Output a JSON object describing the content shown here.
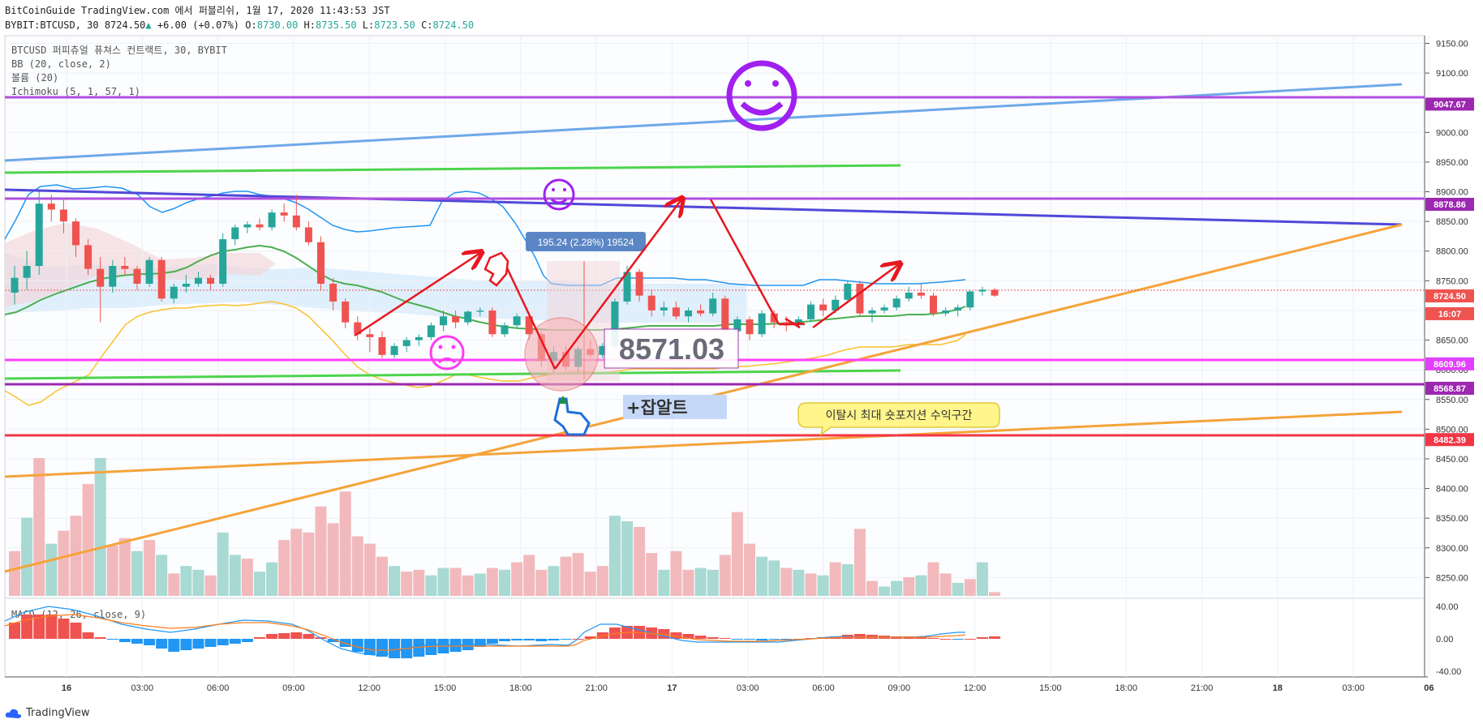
{
  "header": {
    "line1": "BitCoinGuide TradingView.com 에서 퍼블리쉬, 1월 17, 2020 11:43:53 JST",
    "symbol": "BYBIT:BTCUSD, 30",
    "last": "8724.50",
    "arrow": "▲",
    "change": "+6.00 (+0.07%)",
    "o_label": "O:",
    "o_val": "8730.00",
    "h_label": "H:",
    "h_val": "8735.50",
    "l_label": "L:",
    "l_val": "8723.50",
    "c_label": "C:",
    "c_val": "8724.50"
  },
  "legend": [
    "BTCUSD 퍼피츄얼 퓨쳐스 컨트랙트, 30, BYBIT",
    "BB (20, close, 2)",
    "볼륨 (20)",
    "Ichimoku (5, 1, 57, 1)"
  ],
  "macd_label": "MACD (12, 26, close, 9)",
  "annotations": {
    "measure": "195.24 (2.28%) 19524",
    "big_price": "8571.03",
    "catch_alt": "+잡알트",
    "callout": "이탈시 최대 숏포지션 수익구간"
  },
  "price_tags": [
    {
      "value": "9047.67",
      "color": "#9c27b0"
    },
    {
      "value": "8878.86",
      "color": "#9c27b0"
    },
    {
      "value": "8724.50",
      "color": "#ef5350"
    },
    {
      "value": "16:07",
      "color": "#ef5350"
    },
    {
      "value": "8609.96",
      "color": "#e040fb"
    },
    {
      "value": "8568.87",
      "color": "#9c27b0"
    },
    {
      "value": "8482.39",
      "color": "#f23645"
    }
  ],
  "footer": {
    "brand": "TradingView"
  },
  "colors": {
    "up": "#26a69a",
    "down": "#ef5350"
  },
  "chart_data": {
    "type": "candlestick",
    "interval": "30",
    "y_ticks": [
      "9150.00",
      "9100.00",
      "9050.00",
      "9000.00",
      "8950.00",
      "8900.00",
      "8850.00",
      "8800.00",
      "8750.00",
      "8700.00",
      "8650.00",
      "8600.00",
      "8550.00",
      "8500.00",
      "8450.00",
      "8400.00",
      "8350.00",
      "8300.00",
      "8250.00"
    ],
    "ylim": [
      8215,
      9163
    ],
    "macd_ticks": [
      "40.00",
      "0.00",
      "-40.00"
    ],
    "x_ticks": [
      "16",
      "03:00",
      "06:00",
      "09:00",
      "12:00",
      "15:00",
      "18:00",
      "21:00",
      "17",
      "03:00",
      "06:00",
      "09:00",
      "12:00",
      "15:00",
      "18:00",
      "21:00",
      "18",
      "03:00",
      "06"
    ],
    "candles": [
      {
        "o": 8730,
        "h": 8775,
        "l": 8710,
        "c": 8755
      },
      {
        "o": 8755,
        "h": 8800,
        "l": 8735,
        "c": 8775
      },
      {
        "o": 8775,
        "h": 8900,
        "l": 8760,
        "c": 8880
      },
      {
        "o": 8880,
        "h": 8895,
        "l": 8850,
        "c": 8870
      },
      {
        "o": 8870,
        "h": 8890,
        "l": 8830,
        "c": 8850
      },
      {
        "o": 8850,
        "h": 8855,
        "l": 8790,
        "c": 8810
      },
      {
        "o": 8810,
        "h": 8820,
        "l": 8760,
        "c": 8770
      },
      {
        "o": 8770,
        "h": 8790,
        "l": 8680,
        "c": 8740
      },
      {
        "o": 8740,
        "h": 8785,
        "l": 8730,
        "c": 8775
      },
      {
        "o": 8775,
        "h": 8790,
        "l": 8760,
        "c": 8770
      },
      {
        "o": 8770,
        "h": 8775,
        "l": 8735,
        "c": 8745
      },
      {
        "o": 8745,
        "h": 8790,
        "l": 8740,
        "c": 8785
      },
      {
        "o": 8785,
        "h": 8790,
        "l": 8715,
        "c": 8720
      },
      {
        "o": 8720,
        "h": 8745,
        "l": 8712,
        "c": 8740
      },
      {
        "o": 8740,
        "h": 8760,
        "l": 8730,
        "c": 8745
      },
      {
        "o": 8745,
        "h": 8765,
        "l": 8740,
        "c": 8755
      },
      {
        "o": 8755,
        "h": 8760,
        "l": 8735,
        "c": 8745
      },
      {
        "o": 8745,
        "h": 8830,
        "l": 8740,
        "c": 8820
      },
      {
        "o": 8820,
        "h": 8845,
        "l": 8810,
        "c": 8840
      },
      {
        "o": 8840,
        "h": 8850,
        "l": 8830,
        "c": 8845
      },
      {
        "o": 8845,
        "h": 8855,
        "l": 8835,
        "c": 8840
      },
      {
        "o": 8840,
        "h": 8870,
        "l": 8835,
        "c": 8865
      },
      {
        "o": 8865,
        "h": 8880,
        "l": 8850,
        "c": 8860
      },
      {
        "o": 8860,
        "h": 8895,
        "l": 8835,
        "c": 8840
      },
      {
        "o": 8840,
        "h": 8850,
        "l": 8810,
        "c": 8815
      },
      {
        "o": 8815,
        "h": 8825,
        "l": 8735,
        "c": 8745
      },
      {
        "o": 8745,
        "h": 8755,
        "l": 8700,
        "c": 8715
      },
      {
        "o": 8715,
        "h": 8720,
        "l": 8670,
        "c": 8680
      },
      {
        "o": 8680,
        "h": 8690,
        "l": 8650,
        "c": 8660
      },
      {
        "o": 8660,
        "h": 8670,
        "l": 8630,
        "c": 8655
      },
      {
        "o": 8655,
        "h": 8665,
        "l": 8620,
        "c": 8625
      },
      {
        "o": 8625,
        "h": 8645,
        "l": 8620,
        "c": 8640
      },
      {
        "o": 8640,
        "h": 8655,
        "l": 8630,
        "c": 8650
      },
      {
        "o": 8650,
        "h": 8660,
        "l": 8640,
        "c": 8655
      },
      {
        "o": 8655,
        "h": 8680,
        "l": 8650,
        "c": 8675
      },
      {
        "o": 8675,
        "h": 8700,
        "l": 8665,
        "c": 8690
      },
      {
        "o": 8690,
        "h": 8700,
        "l": 8670,
        "c": 8680
      },
      {
        "o": 8680,
        "h": 8700,
        "l": 8675,
        "c": 8698
      },
      {
        "o": 8698,
        "h": 8705,
        "l": 8690,
        "c": 8700
      },
      {
        "o": 8700,
        "h": 8705,
        "l": 8655,
        "c": 8660
      },
      {
        "o": 8660,
        "h": 8680,
        "l": 8655,
        "c": 8675
      },
      {
        "o": 8675,
        "h": 8695,
        "l": 8670,
        "c": 8690
      },
      {
        "o": 8690,
        "h": 8695,
        "l": 8650,
        "c": 8660
      },
      {
        "o": 8660,
        "h": 8665,
        "l": 8605,
        "c": 8615
      },
      {
        "o": 8615,
        "h": 8640,
        "l": 8595,
        "c": 8630
      },
      {
        "o": 8630,
        "h": 8640,
        "l": 8600,
        "c": 8605
      },
      {
        "o": 8605,
        "h": 8640,
        "l": 8595,
        "c": 8635
      },
      {
        "o": 8635,
        "h": 8650,
        "l": 8620,
        "c": 8625
      },
      {
        "o": 8625,
        "h": 8645,
        "l": 8620,
        "c": 8640
      },
      {
        "o": 8640,
        "h": 8720,
        "l": 8635,
        "c": 8715
      },
      {
        "o": 8715,
        "h": 8775,
        "l": 8710,
        "c": 8765
      },
      {
        "o": 8765,
        "h": 8770,
        "l": 8715,
        "c": 8725
      },
      {
        "o": 8725,
        "h": 8735,
        "l": 8690,
        "c": 8700
      },
      {
        "o": 8700,
        "h": 8715,
        "l": 8690,
        "c": 8705
      },
      {
        "o": 8705,
        "h": 8715,
        "l": 8685,
        "c": 8690
      },
      {
        "o": 8690,
        "h": 8705,
        "l": 8680,
        "c": 8700
      },
      {
        "o": 8700,
        "h": 8710,
        "l": 8690,
        "c": 8695
      },
      {
        "o": 8695,
        "h": 8730,
        "l": 8690,
        "c": 8720
      },
      {
        "o": 8720,
        "h": 8725,
        "l": 8660,
        "c": 8665
      },
      {
        "o": 8665,
        "h": 8690,
        "l": 8660,
        "c": 8685
      },
      {
        "o": 8685,
        "h": 8690,
        "l": 8650,
        "c": 8660
      },
      {
        "o": 8660,
        "h": 8700,
        "l": 8655,
        "c": 8695
      },
      {
        "o": 8695,
        "h": 8700,
        "l": 8670,
        "c": 8680
      },
      {
        "o": 8680,
        "h": 8690,
        "l": 8665,
        "c": 8675
      },
      {
        "o": 8675,
        "h": 8690,
        "l": 8670,
        "c": 8685
      },
      {
        "o": 8685,
        "h": 8715,
        "l": 8680,
        "c": 8710
      },
      {
        "o": 8710,
        "h": 8720,
        "l": 8690,
        "c": 8700
      },
      {
        "o": 8700,
        "h": 8725,
        "l": 8695,
        "c": 8718
      },
      {
        "o": 8718,
        "h": 8750,
        "l": 8712,
        "c": 8745
      },
      {
        "o": 8745,
        "h": 8750,
        "l": 8690,
        "c": 8695
      },
      {
        "o": 8695,
        "h": 8705,
        "l": 8680,
        "c": 8700
      },
      {
        "o": 8700,
        "h": 8710,
        "l": 8695,
        "c": 8705
      },
      {
        "o": 8705,
        "h": 8725,
        "l": 8700,
        "c": 8720
      },
      {
        "o": 8720,
        "h": 8740,
        "l": 8715,
        "c": 8730
      },
      {
        "o": 8730,
        "h": 8745,
        "l": 8720,
        "c": 8725
      },
      {
        "o": 8725,
        "h": 8730,
        "l": 8690,
        "c": 8695
      },
      {
        "o": 8695,
        "h": 8705,
        "l": 8690,
        "c": 8700
      },
      {
        "o": 8700,
        "h": 8710,
        "l": 8690,
        "c": 8705
      },
      {
        "o": 8705,
        "h": 8735,
        "l": 8700,
        "c": 8732
      },
      {
        "o": 8732,
        "h": 8740,
        "l": 8725,
        "c": 8735
      },
      {
        "o": 8735,
        "h": 8738,
        "l": 8723,
        "c": 8725
      }
    ],
    "volumes": [
      {
        "v": 120,
        "up": false
      },
      {
        "v": 210,
        "up": true
      },
      {
        "v": 370,
        "up": false
      },
      {
        "v": 140,
        "up": true
      },
      {
        "v": 175,
        "up": false
      },
      {
        "v": 215,
        "up": false
      },
      {
        "v": 300,
        "up": false
      },
      {
        "v": 370,
        "up": true
      },
      {
        "v": 135,
        "up": false
      },
      {
        "v": 155,
        "up": false
      },
      {
        "v": 120,
        "up": true
      },
      {
        "v": 150,
        "up": false
      },
      {
        "v": 110,
        "up": true
      },
      {
        "v": 60,
        "up": false
      },
      {
        "v": 80,
        "up": true
      },
      {
        "v": 70,
        "up": true
      },
      {
        "v": 55,
        "up": false
      },
      {
        "v": 170,
        "up": true
      },
      {
        "v": 110,
        "up": true
      },
      {
        "v": 100,
        "up": false
      },
      {
        "v": 65,
        "up": true
      },
      {
        "v": 90,
        "up": true
      },
      {
        "v": 150,
        "up": false
      },
      {
        "v": 180,
        "up": false
      },
      {
        "v": 170,
        "up": false
      },
      {
        "v": 240,
        "up": false
      },
      {
        "v": 195,
        "up": false
      },
      {
        "v": 280,
        "up": false
      },
      {
        "v": 160,
        "up": false
      },
      {
        "v": 140,
        "up": false
      },
      {
        "v": 105,
        "up": false
      },
      {
        "v": 80,
        "up": true
      },
      {
        "v": 65,
        "up": false
      },
      {
        "v": 70,
        "up": false
      },
      {
        "v": 55,
        "up": true
      },
      {
        "v": 75,
        "up": true
      },
      {
        "v": 75,
        "up": false
      },
      {
        "v": 55,
        "up": false
      },
      {
        "v": 60,
        "up": true
      },
      {
        "v": 75,
        "up": false
      },
      {
        "v": 70,
        "up": true
      },
      {
        "v": 90,
        "up": false
      },
      {
        "v": 110,
        "up": false
      },
      {
        "v": 70,
        "up": false
      },
      {
        "v": 80,
        "up": true
      },
      {
        "v": 105,
        "up": false
      },
      {
        "v": 115,
        "up": false
      },
      {
        "v": 65,
        "up": false
      },
      {
        "v": 80,
        "up": false
      },
      {
        "v": 215,
        "up": true
      },
      {
        "v": 200,
        "up": true
      },
      {
        "v": 185,
        "up": false
      },
      {
        "v": 115,
        "up": false
      },
      {
        "v": 70,
        "up": true
      },
      {
        "v": 120,
        "up": false
      },
      {
        "v": 70,
        "up": false
      },
      {
        "v": 75,
        "up": true
      },
      {
        "v": 70,
        "up": true
      },
      {
        "v": 110,
        "up": false
      },
      {
        "v": 225,
        "up": false
      },
      {
        "v": 140,
        "up": false
      },
      {
        "v": 105,
        "up": true
      },
      {
        "v": 95,
        "up": true
      },
      {
        "v": 75,
        "up": false
      },
      {
        "v": 70,
        "up": true
      },
      {
        "v": 60,
        "up": false
      },
      {
        "v": 55,
        "up": true
      },
      {
        "v": 90,
        "up": false
      },
      {
        "v": 85,
        "up": true
      },
      {
        "v": 180,
        "up": false
      },
      {
        "v": 40,
        "up": false
      },
      {
        "v": 25,
        "up": true
      },
      {
        "v": 40,
        "up": true
      },
      {
        "v": 50,
        "up": false
      },
      {
        "v": 55,
        "up": true
      },
      {
        "v": 90,
        "up": false
      },
      {
        "v": 60,
        "up": false
      },
      {
        "v": 35,
        "up": true
      },
      {
        "v": 45,
        "up": false
      },
      {
        "v": 90,
        "up": true
      },
      {
        "v": 10,
        "up": false
      }
    ],
    "macd_hist": [
      20,
      30,
      30,
      30,
      25,
      20,
      8,
      2,
      -1,
      -4,
      -6,
      -8,
      -12,
      -16,
      -14,
      -12,
      -10,
      -8,
      -6,
      -4,
      2,
      6,
      7,
      8,
      6,
      2,
      -4,
      -10,
      -16,
      -20,
      -22,
      -24,
      -24,
      -22,
      -20,
      -18,
      -16,
      -14,
      -10,
      -6,
      -3,
      -2,
      -2,
      -3,
      -2,
      -1,
      0,
      3,
      8,
      14,
      16,
      16,
      14,
      12,
      8,
      6,
      4,
      2,
      1,
      -1,
      -1,
      -2,
      -1,
      -1,
      -1,
      1,
      2,
      3,
      5,
      6,
      5,
      4,
      3,
      3,
      2,
      1,
      0,
      -1,
      0,
      2,
      3
    ],
    "macd_scale": 40
  }
}
